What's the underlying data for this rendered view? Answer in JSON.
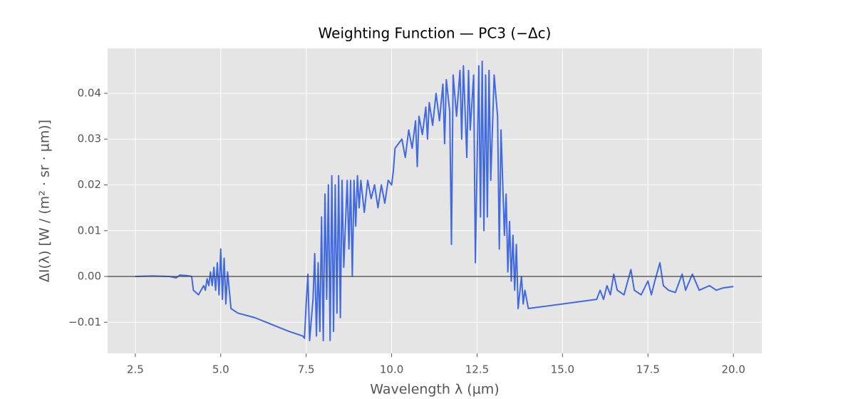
{
  "chart_data": {
    "type": "line",
    "title": "Weighting Function — PC3 (−Δc)",
    "x_label": "Wavelength λ (µm)",
    "y_label": "ΔI(λ) [W / (m² · sr · µm)]",
    "color": "#4169e1",
    "hline": 0,
    "grid": true,
    "xlim": [
      1.69,
      20.83
    ],
    "ylim": [
      -0.0168,
      0.0498
    ],
    "xticks": [
      2.5,
      {
        "value": 5,
        "label": "5.0"
      },
      7.5,
      {
        "value": 10,
        "label": "10.0"
      },
      12.5,
      {
        "value": 15,
        "label": "15.0"
      },
      17.5,
      {
        "value": 20,
        "label": "20.0"
      }
    ],
    "yticks": [
      {
        "value": -0.01,
        "label": "−0.01"
      },
      {
        "value": 0,
        "label": "0.00"
      },
      0.01,
      0.02,
      0.03,
      0.04
    ],
    "x": [
      2.5,
      3.0,
      3.5,
      3.7,
      3.8,
      4.0,
      4.15,
      4.2,
      4.35,
      4.5,
      4.55,
      4.6,
      4.65,
      4.7,
      4.75,
      4.8,
      4.85,
      4.9,
      4.95,
      5.0,
      5.05,
      5.1,
      5.15,
      5.2,
      5.3,
      5.5,
      6.0,
      6.5,
      7.0,
      7.4,
      7.45,
      7.5,
      7.55,
      7.6,
      7.7,
      7.75,
      7.8,
      7.85,
      7.9,
      7.95,
      8.0,
      8.05,
      8.1,
      8.15,
      8.2,
      8.25,
      8.3,
      8.35,
      8.4,
      8.45,
      8.5,
      8.55,
      8.6,
      8.7,
      8.75,
      8.8,
      8.85,
      8.9,
      8.95,
      9.0,
      9.05,
      9.1,
      9.2,
      9.3,
      9.4,
      9.5,
      9.6,
      9.7,
      9.8,
      9.9,
      10.0,
      10.05,
      10.1,
      10.3,
      10.4,
      10.5,
      10.6,
      10.7,
      10.75,
      10.8,
      10.9,
      11.0,
      11.05,
      11.1,
      11.2,
      11.3,
      11.4,
      11.5,
      11.55,
      11.6,
      11.7,
      11.75,
      11.8,
      11.9,
      12.0,
      12.05,
      12.1,
      12.2,
      12.25,
      12.3,
      12.4,
      12.45,
      12.55,
      12.6,
      12.65,
      12.7,
      12.75,
      12.8,
      12.85,
      12.9,
      13.0,
      13.1,
      13.15,
      13.2,
      13.3,
      13.35,
      13.4,
      13.45,
      13.5,
      13.55,
      13.6,
      13.65,
      13.7,
      13.8,
      13.85,
      13.9,
      14.0,
      14.5,
      15.0,
      15.5,
      16.0,
      16.1,
      16.2,
      16.3,
      16.4,
      16.5,
      16.6,
      16.8,
      17.0,
      17.1,
      17.3,
      17.5,
      17.6,
      17.7,
      17.85,
      17.95,
      18.1,
      18.3,
      18.5,
      18.6,
      18.8,
      19.0,
      19.3,
      19.5,
      19.7,
      20.0
    ],
    "values": [
      0,
      0.0001,
      0,
      -0.0003,
      0.0003,
      0.0002,
      0,
      -0.003,
      -0.004,
      -0.002,
      -0.003,
      -0.0005,
      -0.002,
      0.001,
      -0.002,
      0.002,
      -0.003,
      0.003,
      -0.004,
      0.006,
      -0.005,
      0.004,
      -0.006,
      0.001,
      -0.007,
      -0.008,
      -0.009,
      -0.0105,
      -0.012,
      -0.013,
      -0.0135,
      -0.006,
      0.0005,
      -0.014,
      -0.005,
      0.005,
      -0.013,
      0.003,
      -0.012,
      0.013,
      -0.014,
      0.018,
      -0.005,
      0.02,
      -0.014,
      0.022,
      -0.012,
      0.02,
      -0.008,
      0.022,
      -0.009,
      0.021,
      0.002,
      0.021,
      0.006,
      0.021,
      0,
      0.021,
      0.011,
      0.022,
      0.015,
      0.021,
      0.014,
      0.021,
      0.017,
      0.02,
      0.015,
      0.02,
      0.016,
      0.021,
      0.02,
      0.023,
      0.028,
      0.03,
      0.026,
      0.032,
      0.028,
      0.034,
      0.024,
      0.035,
      0.031,
      0.037,
      0.03,
      0.038,
      0.033,
      0.04,
      0.034,
      0.042,
      0.029,
      0.043,
      0.036,
      0.007,
      0.044,
      0.035,
      0.045,
      0.03,
      0.046,
      0.026,
      0.045,
      0.032,
      0.044,
      0.003,
      0.046,
      0.013,
      0.047,
      0.01,
      0.044,
      0.013,
      0.045,
      0.021,
      0.044,
      0.035,
      0.006,
      0.032,
      0.009,
      0.018,
      0.001,
      0.012,
      -0.001,
      0.009,
      -0.003,
      0.007,
      -0.007,
      0,
      -0.006,
      -0.003,
      -0.007,
      -0.0065,
      -0.006,
      -0.0055,
      -0.005,
      -0.003,
      -0.005,
      -0.002,
      -0.004,
      0.0005,
      -0.003,
      -0.004,
      0.0015,
      -0.003,
      -0.004,
      -0.001,
      -0.004,
      -0.001,
      0.003,
      -0.002,
      -0.003,
      -0.0035,
      0.0005,
      -0.003,
      0.0005,
      -0.003,
      -0.002,
      -0.003,
      -0.0025,
      -0.0022
    ]
  }
}
